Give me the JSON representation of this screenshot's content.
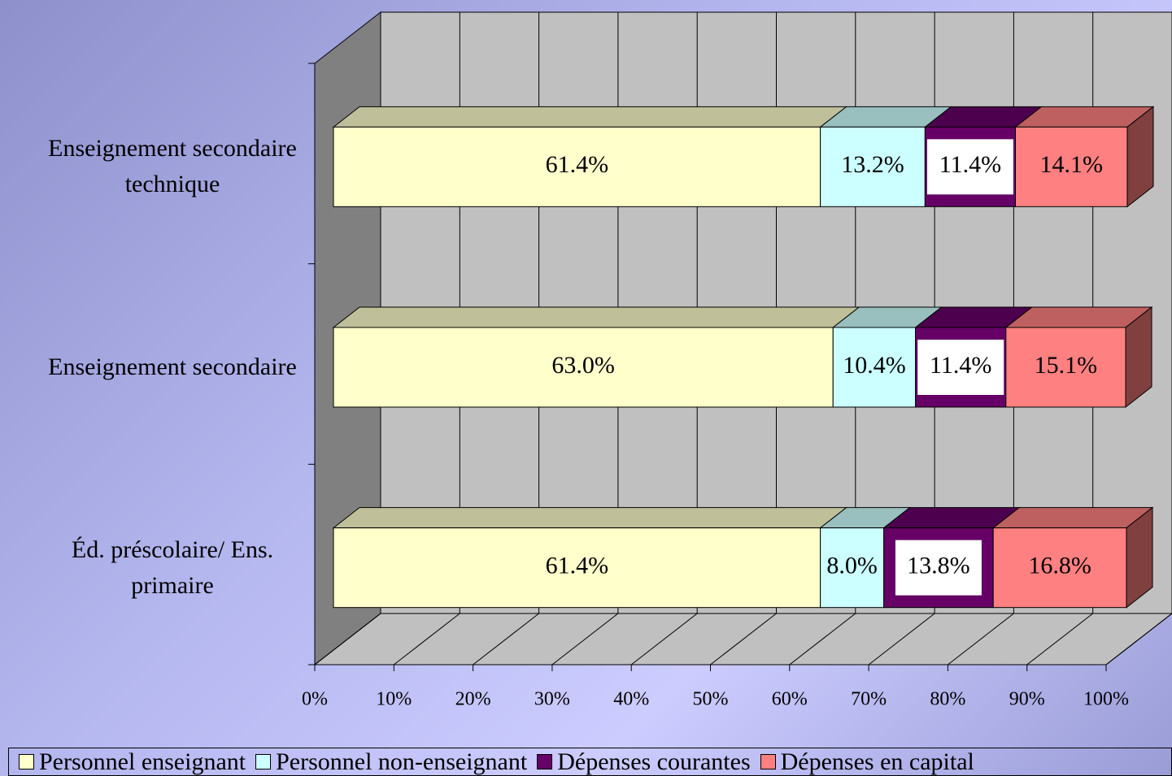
{
  "chart_data": {
    "type": "stacked-bar-3d",
    "categories": [
      "Éd. préscolaire/ Ens. primaire",
      "Enseignement secondaire",
      "Enseignement secondaire technique"
    ],
    "series": [
      {
        "name": "Personnel enseignant",
        "color": "#ffffcc",
        "values": [
          61.4,
          63.0,
          61.4
        ],
        "value_labels": [
          "61.4%",
          "63.0%",
          "61.4%"
        ]
      },
      {
        "name": "Personnel non-enseignant",
        "color": "#ccffff",
        "values": [
          8.0,
          10.4,
          13.2
        ],
        "value_labels": [
          "8.0%",
          "10.4%",
          "13.2%"
        ]
      },
      {
        "name": "Dépenses courantes",
        "color": "#660066",
        "values": [
          13.8,
          11.4,
          11.4
        ],
        "value_labels": [
          "13.8%",
          "11.4%",
          "11.4%"
        ]
      },
      {
        "name": "Dépenses en capital",
        "color": "#ff8080",
        "values": [
          16.8,
          15.1,
          14.1
        ],
        "value_labels": [
          "16.8%",
          "15.1%",
          "14.1%"
        ]
      }
    ],
    "xlim": [
      0,
      100
    ],
    "xticks": [
      {
        "value": 0,
        "label": "0%"
      },
      {
        "value": 10,
        "label": "10%"
      },
      {
        "value": 20,
        "label": "20%"
      },
      {
        "value": 30,
        "label": "30%"
      },
      {
        "value": 40,
        "label": "40%"
      },
      {
        "value": 50,
        "label": "50%"
      },
      {
        "value": 60,
        "label": "60%"
      },
      {
        "value": 70,
        "label": "70%"
      },
      {
        "value": 80,
        "label": "80%"
      },
      {
        "value": 90,
        "label": "90%"
      },
      {
        "value": 100,
        "label": "100%"
      }
    ],
    "grid": true
  }
}
